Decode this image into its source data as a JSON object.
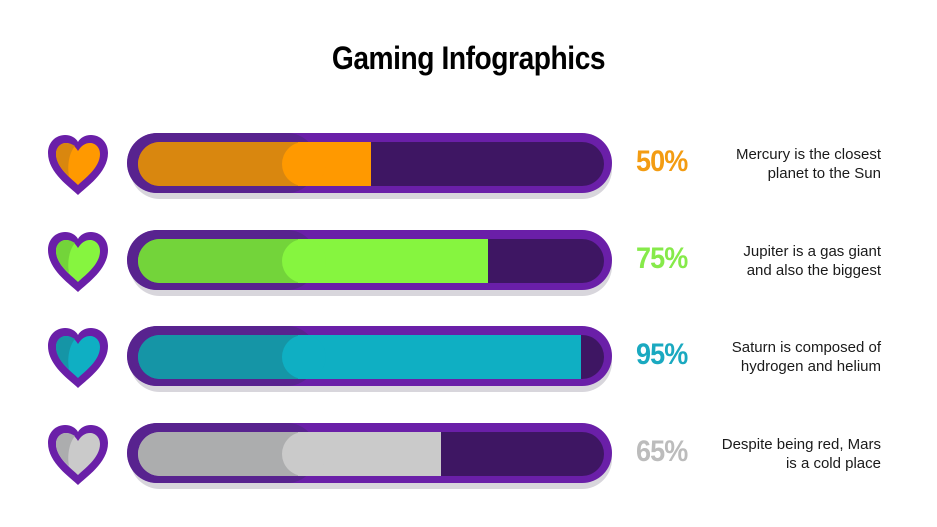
{
  "title": "Gaming Infographics",
  "colors": {
    "border": "#6a1fa8",
    "border_dark": "#58238f",
    "track": "#3e1663",
    "shadow": "#d8d6dc"
  },
  "rows": [
    {
      "percent_label": "50%",
      "percent": 50,
      "color": "#ff9900",
      "color_dark": "#d9870f",
      "pct_color": "#f39c12",
      "description_line1": "Mercury is the closest",
      "description_line2": "planet to the Sun"
    },
    {
      "percent_label": "75%",
      "percent": 75,
      "color": "#86f53f",
      "color_dark": "#73d43a",
      "pct_color": "#86ea4a",
      "description_line1": "Jupiter is a gas giant",
      "description_line2": "and also the biggest"
    },
    {
      "percent_label": "95%",
      "percent": 95,
      "color": "#0fafc3",
      "color_dark": "#1595a6",
      "pct_color": "#1aa9c0",
      "description_line1": "Saturn is composed of",
      "description_line2": "hydrogen and helium"
    },
    {
      "percent_label": "65%",
      "percent": 65,
      "color": "#cacaca",
      "color_dark": "#acadae",
      "pct_color": "#bcbcbc",
      "description_line1": "Despite being red, Mars",
      "description_line2": "is a cold place"
    }
  ],
  "chart_data": {
    "type": "bar",
    "orientation": "horizontal",
    "title": "Gaming Infographics",
    "categories": [
      "Mercury",
      "Jupiter",
      "Saturn",
      "Mars"
    ],
    "values": [
      50,
      75,
      95,
      65
    ],
    "value_labels": [
      "50%",
      "75%",
      "95%",
      "65%"
    ],
    "annotations": [
      "Mercury is the closest planet to the Sun",
      "Jupiter is a gas giant and also the biggest",
      "Saturn is composed of hydrogen and helium",
      "Despite being red, Mars is a cold place"
    ],
    "series_colors": [
      "#ff9900",
      "#86f53f",
      "#0fafc3",
      "#cacaca"
    ],
    "xlim": [
      0,
      100
    ],
    "grid": false,
    "legend": "none"
  }
}
